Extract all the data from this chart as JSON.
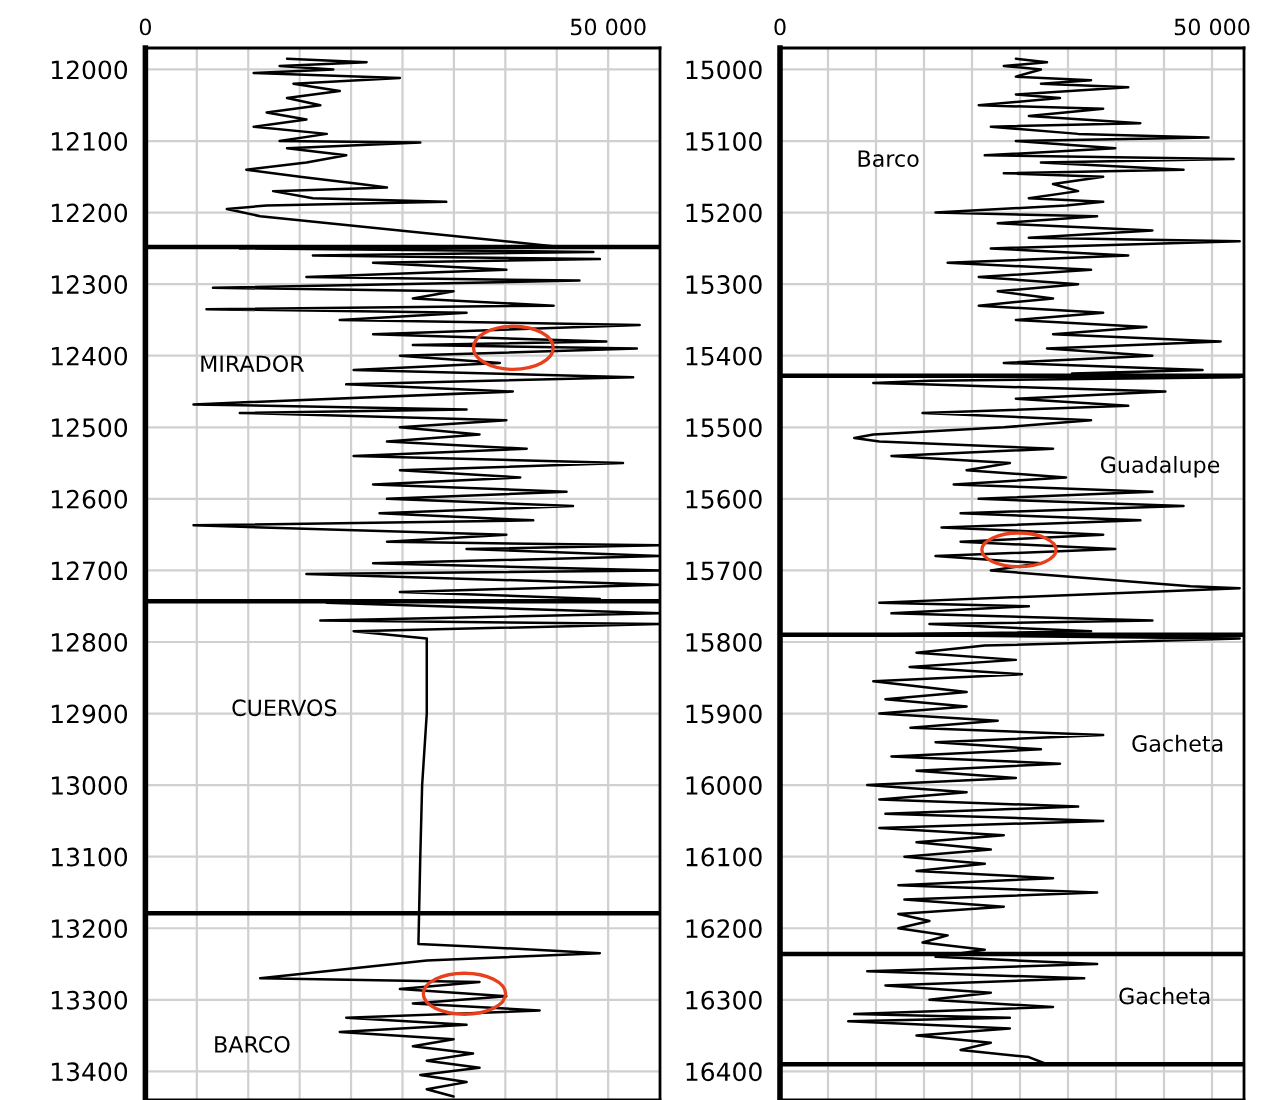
{
  "chart_data": [
    {
      "type": "line",
      "orientation": "horizontal",
      "grid": true,
      "legend": false,
      "marker": "none",
      "line_style": "solid",
      "xlim": [
        0,
        55600
      ],
      "xticks": [
        0,
        {
          "value": 5556,
          "label": null
        },
        {
          "value": 11111,
          "label": null
        },
        {
          "value": 16667,
          "label": null
        },
        {
          "value": 22222,
          "label": null
        },
        {
          "value": 27778,
          "label": null
        },
        {
          "value": 33333,
          "label": null
        },
        {
          "value": 38889,
          "label": null
        },
        {
          "value": 44444,
          "label": null
        },
        {
          "value": 50000,
          "label": "50 000"
        }
      ],
      "ylim": [
        13440,
        11970
      ],
      "yticks": [
        12000,
        12100,
        12200,
        12300,
        12400,
        12500,
        12600,
        12700,
        12800,
        12900,
        13000,
        13100,
        13200,
        13300,
        13400
      ],
      "series": [
        {
          "color": "#000000",
          "x": [
            11985,
            11990,
            11995,
            12000,
            12005,
            12012,
            12020,
            12030,
            12040,
            12050,
            12060,
            12070,
            12080,
            12090,
            12100,
            12102,
            12110,
            12120,
            12130,
            12140,
            12150,
            12160,
            12165,
            12170,
            12180,
            12185,
            12190,
            12195,
            12205,
            12248,
            12250,
            12255,
            12260,
            12265,
            12270,
            12280,
            12290,
            12295,
            12305,
            12310,
            12320,
            12330,
            12335,
            12340,
            12350,
            12357,
            12370,
            12380,
            12385,
            12390,
            12400,
            12410,
            12420,
            12430,
            12440,
            12450,
            12468,
            12475,
            12480,
            12490,
            12500,
            12510,
            12520,
            12530,
            12540,
            12550,
            12560,
            12570,
            12580,
            12590,
            12600,
            12610,
            12620,
            12630,
            12637,
            12650,
            12660,
            12665,
            12670,
            12680,
            12690,
            12700,
            12705,
            12720,
            12730,
            12740,
            12745,
            12760,
            12770,
            12775,
            12785,
            12795,
            12900,
            13000,
            13100,
            13222,
            13225,
            13235,
            13245,
            13270,
            13275,
            13285,
            13295,
            13305,
            13315,
            13325,
            13335,
            13345,
            13355,
            13365,
            13375,
            13385,
            13395,
            13405,
            13415,
            13425,
            13435
          ],
          "values": [
            15300,
            23900,
            14500,
            20300,
            11700,
            27500,
            16000,
            21000,
            15300,
            18900,
            13100,
            17400,
            11700,
            19600,
            14500,
            29700,
            15300,
            21700,
            17400,
            10900,
            16700,
            23200,
            26100,
            13800,
            18100,
            32500,
            13100,
            8800,
            12400,
            44800,
            10200,
            48400,
            18100,
            49100,
            24600,
            39000,
            17400,
            46900,
            7300,
            33300,
            28900,
            44100,
            6600,
            34700,
            21000,
            53400,
            24600,
            49800,
            28900,
            53100,
            27500,
            38300,
            22500,
            52700,
            21700,
            39700,
            5200,
            34700,
            10200,
            39000,
            27500,
            36100,
            26100,
            41200,
            22500,
            51600,
            27500,
            40500,
            24600,
            45500,
            26100,
            46200,
            25300,
            41900,
            5200,
            39000,
            26100,
            55600,
            34700,
            55600,
            24600,
            55600,
            17400,
            55600,
            27500,
            49100,
            19600,
            55600,
            18900,
            55600,
            22500,
            30400,
            30400,
            29900,
            29700,
            29500,
            34700,
            49100,
            30400,
            12400,
            36100,
            27500,
            39000,
            28900,
            42600,
            21700,
            34700,
            21000,
            33300,
            28900,
            35400,
            30400,
            36100,
            29700,
            34700,
            30400,
            33300
          ]
        }
      ],
      "ref_lines": [
        {
          "axis": "y",
          "value": 12248,
          "color": "#000000"
        },
        {
          "axis": "y",
          "value": 12743,
          "color": "#000000"
        },
        {
          "axis": "y",
          "value": 13179,
          "color": "#000000"
        }
      ],
      "annotations": [
        "MIRADOR",
        "CUERVOS",
        "BARCO"
      ]
    },
    {
      "type": "line",
      "orientation": "horizontal",
      "grid": true,
      "legend": false,
      "marker": "none",
      "line_style": "solid",
      "xlim": [
        0,
        53700
      ],
      "xticks": [
        0,
        {
          "value": 5556,
          "label": null
        },
        {
          "value": 11111,
          "label": null
        },
        {
          "value": 16667,
          "label": null
        },
        {
          "value": 22222,
          "label": null
        },
        {
          "value": 27778,
          "label": null
        },
        {
          "value": 33333,
          "label": null
        },
        {
          "value": 38889,
          "label": null
        },
        {
          "value": 44444,
          "label": null
        },
        {
          "value": 50000,
          "label": "50 000"
        }
      ],
      "ylim": [
        16440,
        14970
      ],
      "yticks": [
        15000,
        15100,
        15200,
        15300,
        15400,
        15500,
        15600,
        15700,
        15800,
        15900,
        16000,
        16100,
        16200,
        16300,
        16400
      ],
      "series": [
        {
          "color": "#000000",
          "x": [
            14985,
            14990,
            14995,
            15000,
            15010,
            15015,
            15020,
            15025,
            15035,
            15040,
            15050,
            15055,
            15065,
            15075,
            15080,
            15090,
            15095,
            15100,
            15110,
            15120,
            15125,
            15130,
            15140,
            15145,
            15150,
            15160,
            15170,
            15180,
            15185,
            15190,
            15200,
            15205,
            15215,
            15225,
            15235,
            15240,
            15250,
            15260,
            15270,
            15280,
            15290,
            15300,
            15310,
            15320,
            15330,
            15340,
            15350,
            15360,
            15370,
            15380,
            15390,
            15400,
            15410,
            15420,
            15425,
            15430,
            15435,
            15438,
            15440,
            15450,
            15460,
            15470,
            15480,
            15490,
            15500,
            15510,
            15515,
            15520,
            15530,
            15540,
            15550,
            15560,
            15570,
            15580,
            15590,
            15600,
            15610,
            15620,
            15630,
            15640,
            15650,
            15660,
            15670,
            15680,
            15690,
            15700,
            15722,
            15725,
            15745,
            15750,
            15760,
            15770,
            15775,
            15785,
            15790,
            15795,
            15805,
            15815,
            15825,
            15835,
            15845,
            15855,
            15870,
            15880,
            15890,
            15900,
            15910,
            15920,
            15930,
            15940,
            15950,
            15960,
            15970,
            15980,
            15990,
            16000,
            16010,
            16020,
            16030,
            16040,
            16050,
            16060,
            16070,
            16080,
            16090,
            16100,
            16110,
            16120,
            16130,
            16140,
            16150,
            16160,
            16170,
            16180,
            16190,
            16200,
            16210,
            16220,
            16230,
            16240,
            16250,
            16260,
            16270,
            16280,
            16290,
            16300,
            16310,
            16320,
            16325,
            16330,
            16340,
            16350,
            16360,
            16370,
            16380,
            16390
          ],
          "values": [
            27300,
            30900,
            25900,
            30200,
            27300,
            36000,
            30200,
            40300,
            27300,
            32400,
            23000,
            37400,
            28800,
            41700,
            24400,
            34500,
            49600,
            27300,
            38800,
            23700,
            52500,
            30200,
            46700,
            25900,
            37400,
            31600,
            34500,
            28800,
            37400,
            33100,
            18000,
            36700,
            25200,
            43100,
            28800,
            53200,
            24400,
            40300,
            19400,
            36000,
            23000,
            34500,
            25200,
            31600,
            23000,
            37400,
            27300,
            42400,
            31600,
            51000,
            30900,
            43100,
            25900,
            48900,
            33800,
            53200,
            17300,
            10800,
            16500,
            44600,
            27300,
            40300,
            16500,
            36000,
            25900,
            10800,
            8600,
            11500,
            31600,
            12900,
            26600,
            21600,
            33100,
            20100,
            43100,
            23000,
            46700,
            20900,
            41700,
            18700,
            37400,
            20900,
            38800,
            18000,
            30200,
            24400,
            47500,
            53200,
            11500,
            28800,
            12900,
            43100,
            17300,
            36000,
            9300,
            53200,
            23700,
            15800,
            27300,
            15000,
            28000,
            10800,
            21600,
            12200,
            21600,
            11500,
            25200,
            15100,
            37400,
            18000,
            30200,
            12900,
            32400,
            15800,
            27300,
            10100,
            21600,
            11500,
            34500,
            12200,
            37400,
            11500,
            25900,
            15800,
            24400,
            14400,
            23700,
            15800,
            31600,
            13700,
            36700,
            14400,
            25900,
            13700,
            17300,
            13700,
            19400,
            16500,
            23700,
            18000,
            36700,
            10100,
            35200,
            12200,
            24400,
            17300,
            31600,
            8600,
            26600,
            7900,
            26600,
            15800,
            24400,
            20900,
            28800,
            30900
          ]
        }
      ],
      "ref_lines": [
        {
          "axis": "y",
          "value": 15428,
          "color": "#000000"
        },
        {
          "axis": "y",
          "value": 15790,
          "color": "#000000"
        },
        {
          "axis": "y",
          "value": 16236,
          "color": "#000000"
        },
        {
          "axis": "y",
          "value": 16390,
          "color": "#000000"
        }
      ],
      "annotations": [
        "Barco",
        "Guadalupe",
        "Gacheta",
        "Gacheta"
      ]
    }
  ]
}
